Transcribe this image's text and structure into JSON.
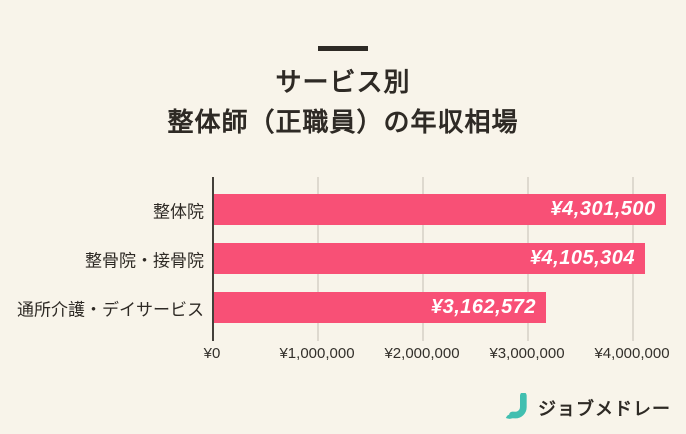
{
  "header": {
    "title_line1": "サービス別",
    "title_line2": "整体師（正職員）の年収相場"
  },
  "chart_data": {
    "type": "bar",
    "orientation": "horizontal",
    "title": "サービス別 整体師（正職員）の年収相場",
    "categories": [
      "整体院",
      "整骨院・接骨院",
      "通所介護・デイサービス"
    ],
    "values": [
      4301500,
      4105304,
      3162572
    ],
    "value_labels": [
      "¥4,301,500",
      "¥4,105,304",
      "¥3,162,572"
    ],
    "x_ticks": [
      "¥0",
      "¥1,000,000",
      "¥2,000,000",
      "¥3,000,000",
      "¥4,000,000"
    ],
    "x_tick_values": [
      0,
      1000000,
      2000000,
      3000000,
      4000000
    ],
    "xlim": [
      0,
      4400000
    ],
    "grid": true,
    "legend": "none",
    "bar_color": "#f85076",
    "value_label_color": "#ffffff",
    "background_color": "#f8f4ea"
  },
  "footer": {
    "logo_text": "ジョブメドレー",
    "logo_color": "#41bfb0"
  }
}
